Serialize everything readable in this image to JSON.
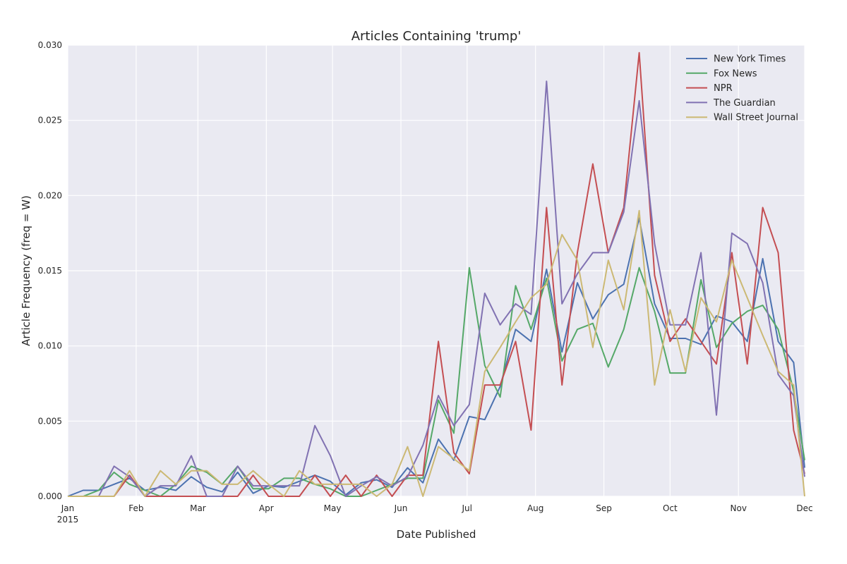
{
  "chart_data": {
    "type": "line",
    "title": "Articles Containing 'trump'",
    "xlabel": "Date Published",
    "ylabel": "Article Frequency (freq = W)",
    "ylim": [
      0,
      0.03
    ],
    "xlim": [
      "2015-01-01",
      "2015-12-01"
    ],
    "grid": true,
    "legend_position": "top-right",
    "y_ticks": [
      "0.000",
      "0.005",
      "0.010",
      "0.015",
      "0.020",
      "0.025",
      "0.030"
    ],
    "x_ticks": [
      {
        "date": "2015-01-01",
        "label": "Jan",
        "sublabel": "2015"
      },
      {
        "date": "2015-02-01",
        "label": "Feb",
        "sublabel": ""
      },
      {
        "date": "2015-03-01",
        "label": "Mar",
        "sublabel": ""
      },
      {
        "date": "2015-04-01",
        "label": "Apr",
        "sublabel": ""
      },
      {
        "date": "2015-05-01",
        "label": "May",
        "sublabel": ""
      },
      {
        "date": "2015-06-01",
        "label": "Jun",
        "sublabel": ""
      },
      {
        "date": "2015-07-01",
        "label": "Jul",
        "sublabel": ""
      },
      {
        "date": "2015-08-01",
        "label": "Aug",
        "sublabel": ""
      },
      {
        "date": "2015-09-01",
        "label": "Sep",
        "sublabel": ""
      },
      {
        "date": "2015-10-01",
        "label": "Oct",
        "sublabel": ""
      },
      {
        "date": "2015-11-01",
        "label": "Nov",
        "sublabel": ""
      },
      {
        "date": "2015-12-01",
        "label": "Dec",
        "sublabel": ""
      }
    ],
    "x": [
      "2015-01-01",
      "2015-01-08",
      "2015-01-15",
      "2015-01-22",
      "2015-01-29",
      "2015-02-05",
      "2015-02-12",
      "2015-02-19",
      "2015-02-26",
      "2015-03-05",
      "2015-03-12",
      "2015-03-19",
      "2015-03-26",
      "2015-04-02",
      "2015-04-09",
      "2015-04-16",
      "2015-04-23",
      "2015-04-30",
      "2015-05-07",
      "2015-05-14",
      "2015-05-21",
      "2015-05-28",
      "2015-06-04",
      "2015-06-11",
      "2015-06-18",
      "2015-06-25",
      "2015-07-02",
      "2015-07-09",
      "2015-07-16",
      "2015-07-23",
      "2015-07-30",
      "2015-08-06",
      "2015-08-13",
      "2015-08-20",
      "2015-08-27",
      "2015-09-03",
      "2015-09-10",
      "2015-09-17",
      "2015-09-24",
      "2015-10-01",
      "2015-10-08",
      "2015-10-15",
      "2015-10-22",
      "2015-10-29",
      "2015-11-05",
      "2015-11-12",
      "2015-11-19",
      "2015-11-26",
      "2015-12-01"
    ],
    "series": [
      {
        "name": "New York Times",
        "color": "#4c72b0",
        "values": [
          0.0,
          0.0004,
          0.0004,
          0.0008,
          0.0012,
          0.0004,
          0.0006,
          0.0004,
          0.0013,
          0.0006,
          0.0003,
          0.0016,
          0.0002,
          0.0007,
          0.0006,
          0.001,
          0.0014,
          0.001,
          0.0001,
          0.0009,
          0.0011,
          0.0006,
          0.0019,
          0.0009,
          0.0038,
          0.0024,
          0.0053,
          0.0051,
          0.0073,
          0.0111,
          0.0103,
          0.0151,
          0.0096,
          0.0142,
          0.0118,
          0.0134,
          0.0141,
          0.0185,
          0.0128,
          0.0105,
          0.0105,
          0.0101,
          0.012,
          0.0116,
          0.0103,
          0.0158,
          0.0103,
          0.0089,
          0.0019
        ]
      },
      {
        "name": "Fox News",
        "color": "#55a868",
        "values": [
          0.0,
          0.0,
          0.0004,
          0.0016,
          0.0008,
          0.0004,
          0.0,
          0.0008,
          0.002,
          0.0016,
          0.0008,
          0.002,
          0.0005,
          0.0005,
          0.0012,
          0.0012,
          0.0008,
          0.0005,
          0.0,
          0.0,
          0.0004,
          0.0008,
          0.0012,
          0.0012,
          0.0064,
          0.0042,
          0.0152,
          0.0087,
          0.0066,
          0.014,
          0.0111,
          0.0145,
          0.009,
          0.0111,
          0.0115,
          0.0086,
          0.0111,
          0.0152,
          0.0123,
          0.0082,
          0.0082,
          0.0144,
          0.0099,
          0.0115,
          0.0123,
          0.0127,
          0.0111,
          0.007,
          0.0024
        ]
      },
      {
        "name": "NPR",
        "color": "#c44e52",
        "values": [
          0.0,
          0.0,
          0.0,
          0.0,
          0.0014,
          0.0,
          0.0,
          0.0,
          0.0,
          0.0,
          0.0,
          0.0,
          0.0014,
          0.0,
          0.0,
          0.0,
          0.0014,
          0.0,
          0.0014,
          0.0,
          0.0014,
          0.0,
          0.0014,
          0.0014,
          0.0103,
          0.0029,
          0.0015,
          0.0074,
          0.0074,
          0.0103,
          0.0044,
          0.0192,
          0.0074,
          0.0162,
          0.0221,
          0.0162,
          0.0192,
          0.0295,
          0.0147,
          0.0103,
          0.0118,
          0.0103,
          0.0088,
          0.0162,
          0.0088,
          0.0192,
          0.0162,
          0.0044,
          0.0015
        ]
      },
      {
        "name": "The Guardian",
        "color": "#8172b2",
        "values": [
          0.0,
          0.0,
          0.0,
          0.002,
          0.0013,
          0.0,
          0.0007,
          0.0007,
          0.0027,
          0.0,
          0.0,
          0.002,
          0.0007,
          0.0007,
          0.0007,
          0.0007,
          0.0047,
          0.0027,
          0.0,
          0.0007,
          0.0013,
          0.0007,
          0.0013,
          0.0034,
          0.0067,
          0.0047,
          0.0061,
          0.0135,
          0.0114,
          0.0128,
          0.0121,
          0.0276,
          0.0128,
          0.0148,
          0.0162,
          0.0162,
          0.0189,
          0.0263,
          0.0168,
          0.0114,
          0.0114,
          0.0162,
          0.0054,
          0.0175,
          0.0168,
          0.0142,
          0.0081,
          0.0067,
          0.0013
        ]
      },
      {
        "name": "Wall Street Journal",
        "color": "#ccb974",
        "values": [
          0.0,
          0.0,
          0.0,
          0.0,
          0.0017,
          0.0,
          0.0017,
          0.0008,
          0.0017,
          0.0017,
          0.0008,
          0.0008,
          0.0017,
          0.0008,
          0.0,
          0.0017,
          0.0008,
          0.0008,
          0.0008,
          0.0008,
          0.0,
          0.0008,
          0.0033,
          0.0,
          0.0033,
          0.0025,
          0.0017,
          0.0083,
          0.0099,
          0.0116,
          0.0132,
          0.0141,
          0.0174,
          0.0157,
          0.0099,
          0.0157,
          0.0124,
          0.019,
          0.0074,
          0.0124,
          0.0083,
          0.0132,
          0.0116,
          0.0157,
          0.0132,
          0.0107,
          0.0083,
          0.0074,
          0.0
        ]
      }
    ]
  }
}
